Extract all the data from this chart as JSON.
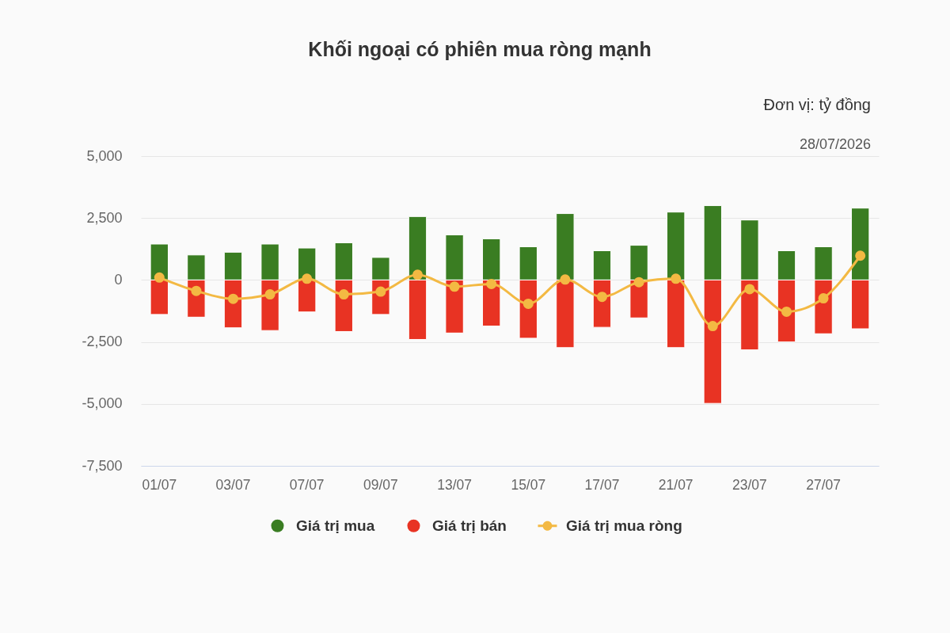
{
  "chart_data": {
    "type": "bar",
    "title": "Khối ngoại có phiên mua ròng mạnh",
    "subtitle": "Đơn vị: tỷ đồng",
    "annotations": [
      "28/07/2026"
    ],
    "categories": [
      "01/07",
      null,
      "03/07",
      null,
      "07/07",
      null,
      "09/07",
      null,
      "13/07",
      null,
      "15/07",
      null,
      "17/07",
      null,
      "21/07",
      null,
      "23/07",
      null,
      "27/07",
      null
    ],
    "series": [
      {
        "name": "Giá trị mua",
        "color": "#3a7d22",
        "values": [
          1450,
          1010,
          1120,
          1450,
          1290,
          1500,
          910,
          2560,
          1820,
          1660,
          1340,
          2680,
          1180,
          1400,
          2740,
          3000,
          2420,
          1180,
          1340,
          2900
        ]
      },
      {
        "name": "Giá trị bán",
        "color": "#e83323",
        "values": [
          -1390,
          -1500,
          -1930,
          -2040,
          -1290,
          -2080,
          -1390,
          -2400,
          -2140,
          -1860,
          -2350,
          -2730,
          -1910,
          -1530,
          -2730,
          -4980,
          -2820,
          -2500,
          -2170,
          -1970
        ]
      },
      {
        "name": "Giá trị mua ròng",
        "type": "line",
        "color": "#f3b943",
        "marker": "circle",
        "values": [
          100,
          -440,
          -760,
          -580,
          50,
          -580,
          -470,
          210,
          -270,
          -160,
          -960,
          20,
          -680,
          -90,
          50,
          -1860,
          -370,
          -1280,
          -740,
          980
        ]
      }
    ],
    "stacked": true,
    "ylim": [
      -7500,
      5000
    ],
    "yticks": [
      {
        "value": -7500,
        "label": "-7,500"
      },
      {
        "value": -5000,
        "label": "-5,000"
      },
      {
        "value": -2500,
        "label": "-2,500"
      },
      0,
      {
        "value": 2500,
        "label": "2,500"
      },
      {
        "value": 5000,
        "label": "5,000"
      }
    ],
    "grid": "y",
    "legend": "bottom"
  }
}
